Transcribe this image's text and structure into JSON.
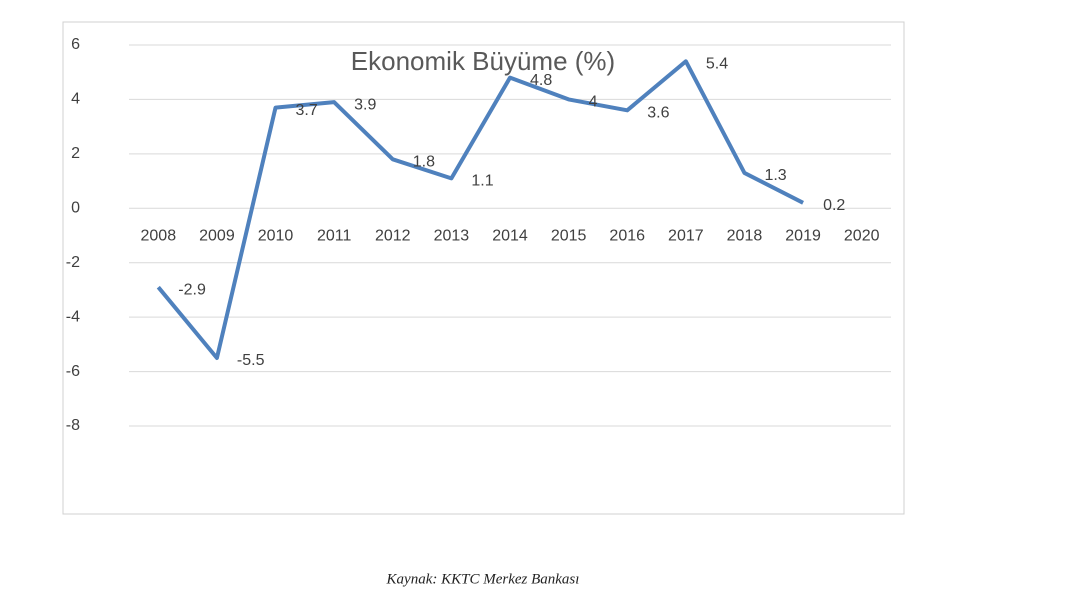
{
  "chart_data": {
    "type": "line",
    "title": "Ekonomik Büyüme (%)",
    "categories": [
      "2008",
      "2009",
      "2010",
      "2011",
      "2012",
      "2013",
      "2014",
      "2015",
      "2016",
      "2017",
      "2018",
      "2019",
      "2020"
    ],
    "series": [
      {
        "color": "#4f81bd",
        "values": [
          -2.9,
          -5.5,
          3.7,
          3.9,
          1.8,
          1.1,
          4.8,
          4,
          3.6,
          5.4,
          1.3,
          0.2,
          null
        ]
      }
    ],
    "ylim": [
      -8,
      6
    ],
    "yticks": [
      -8,
      -6,
      -4,
      -2,
      0,
      2,
      4,
      6
    ],
    "grid": true,
    "source": "Kaynak: KKTC Merkez Bankası"
  }
}
